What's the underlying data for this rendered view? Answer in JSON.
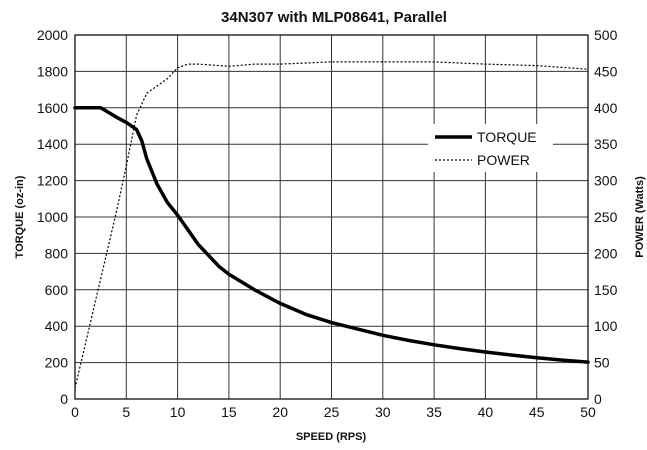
{
  "chart_data": {
    "type": "line",
    "title": "34N307 with MLP08641, Parallel",
    "xlabel": "SPEED (RPS)",
    "ylabel": "TORQUE (oz-in)",
    "y2label": "POWER (Watts)",
    "xlim": [
      0,
      50
    ],
    "ylim": [
      0,
      2000
    ],
    "y2lim": [
      0,
      500
    ],
    "xticks": [
      "0",
      "5",
      "10",
      "15",
      "20",
      "25",
      "30",
      "35",
      "40",
      "45",
      "50"
    ],
    "yticks": [
      "0",
      "200",
      "400",
      "600",
      "800",
      "1000",
      "1200",
      "1400",
      "1600",
      "1800",
      "2000"
    ],
    "y2ticks": [
      "0",
      "50",
      "100",
      "150",
      "200",
      "250",
      "300",
      "350",
      "400",
      "450",
      "500"
    ],
    "grid": true,
    "legend_position": "right-center",
    "series": [
      {
        "name": "TORQUE",
        "axis": "left",
        "style": "solid",
        "color": "#000000",
        "x": [
          0,
          2.5,
          4,
          5,
          6,
          6.5,
          7,
          7.5,
          8,
          9,
          10,
          11,
          12,
          13,
          14,
          15,
          17.5,
          20,
          22.5,
          25,
          27.5,
          30,
          32.5,
          35,
          37.5,
          40,
          42.5,
          45,
          47.5,
          50
        ],
        "y": [
          1600,
          1600,
          1550,
          1520,
          1480,
          1420,
          1320,
          1250,
          1180,
          1080,
          1010,
          930,
          850,
          790,
          730,
          685,
          600,
          525,
          465,
          420,
          385,
          350,
          322,
          298,
          277,
          258,
          242,
          227,
          214,
          203
        ]
      },
      {
        "name": "POWER",
        "axis": "right",
        "style": "dotted",
        "color": "#000000",
        "x": [
          0,
          1,
          2,
          3,
          4,
          5,
          5.5,
          6,
          6.5,
          7,
          8,
          9,
          10,
          11,
          12,
          15,
          17.5,
          20,
          25,
          30,
          35,
          40,
          45,
          50
        ],
        "y": [
          15,
          75,
          135,
          195,
          255,
          320,
          355,
          390,
          405,
          420,
          430,
          440,
          455,
          460,
          460,
          457,
          460,
          460,
          463,
          463,
          463,
          460,
          458,
          453
        ]
      }
    ]
  }
}
